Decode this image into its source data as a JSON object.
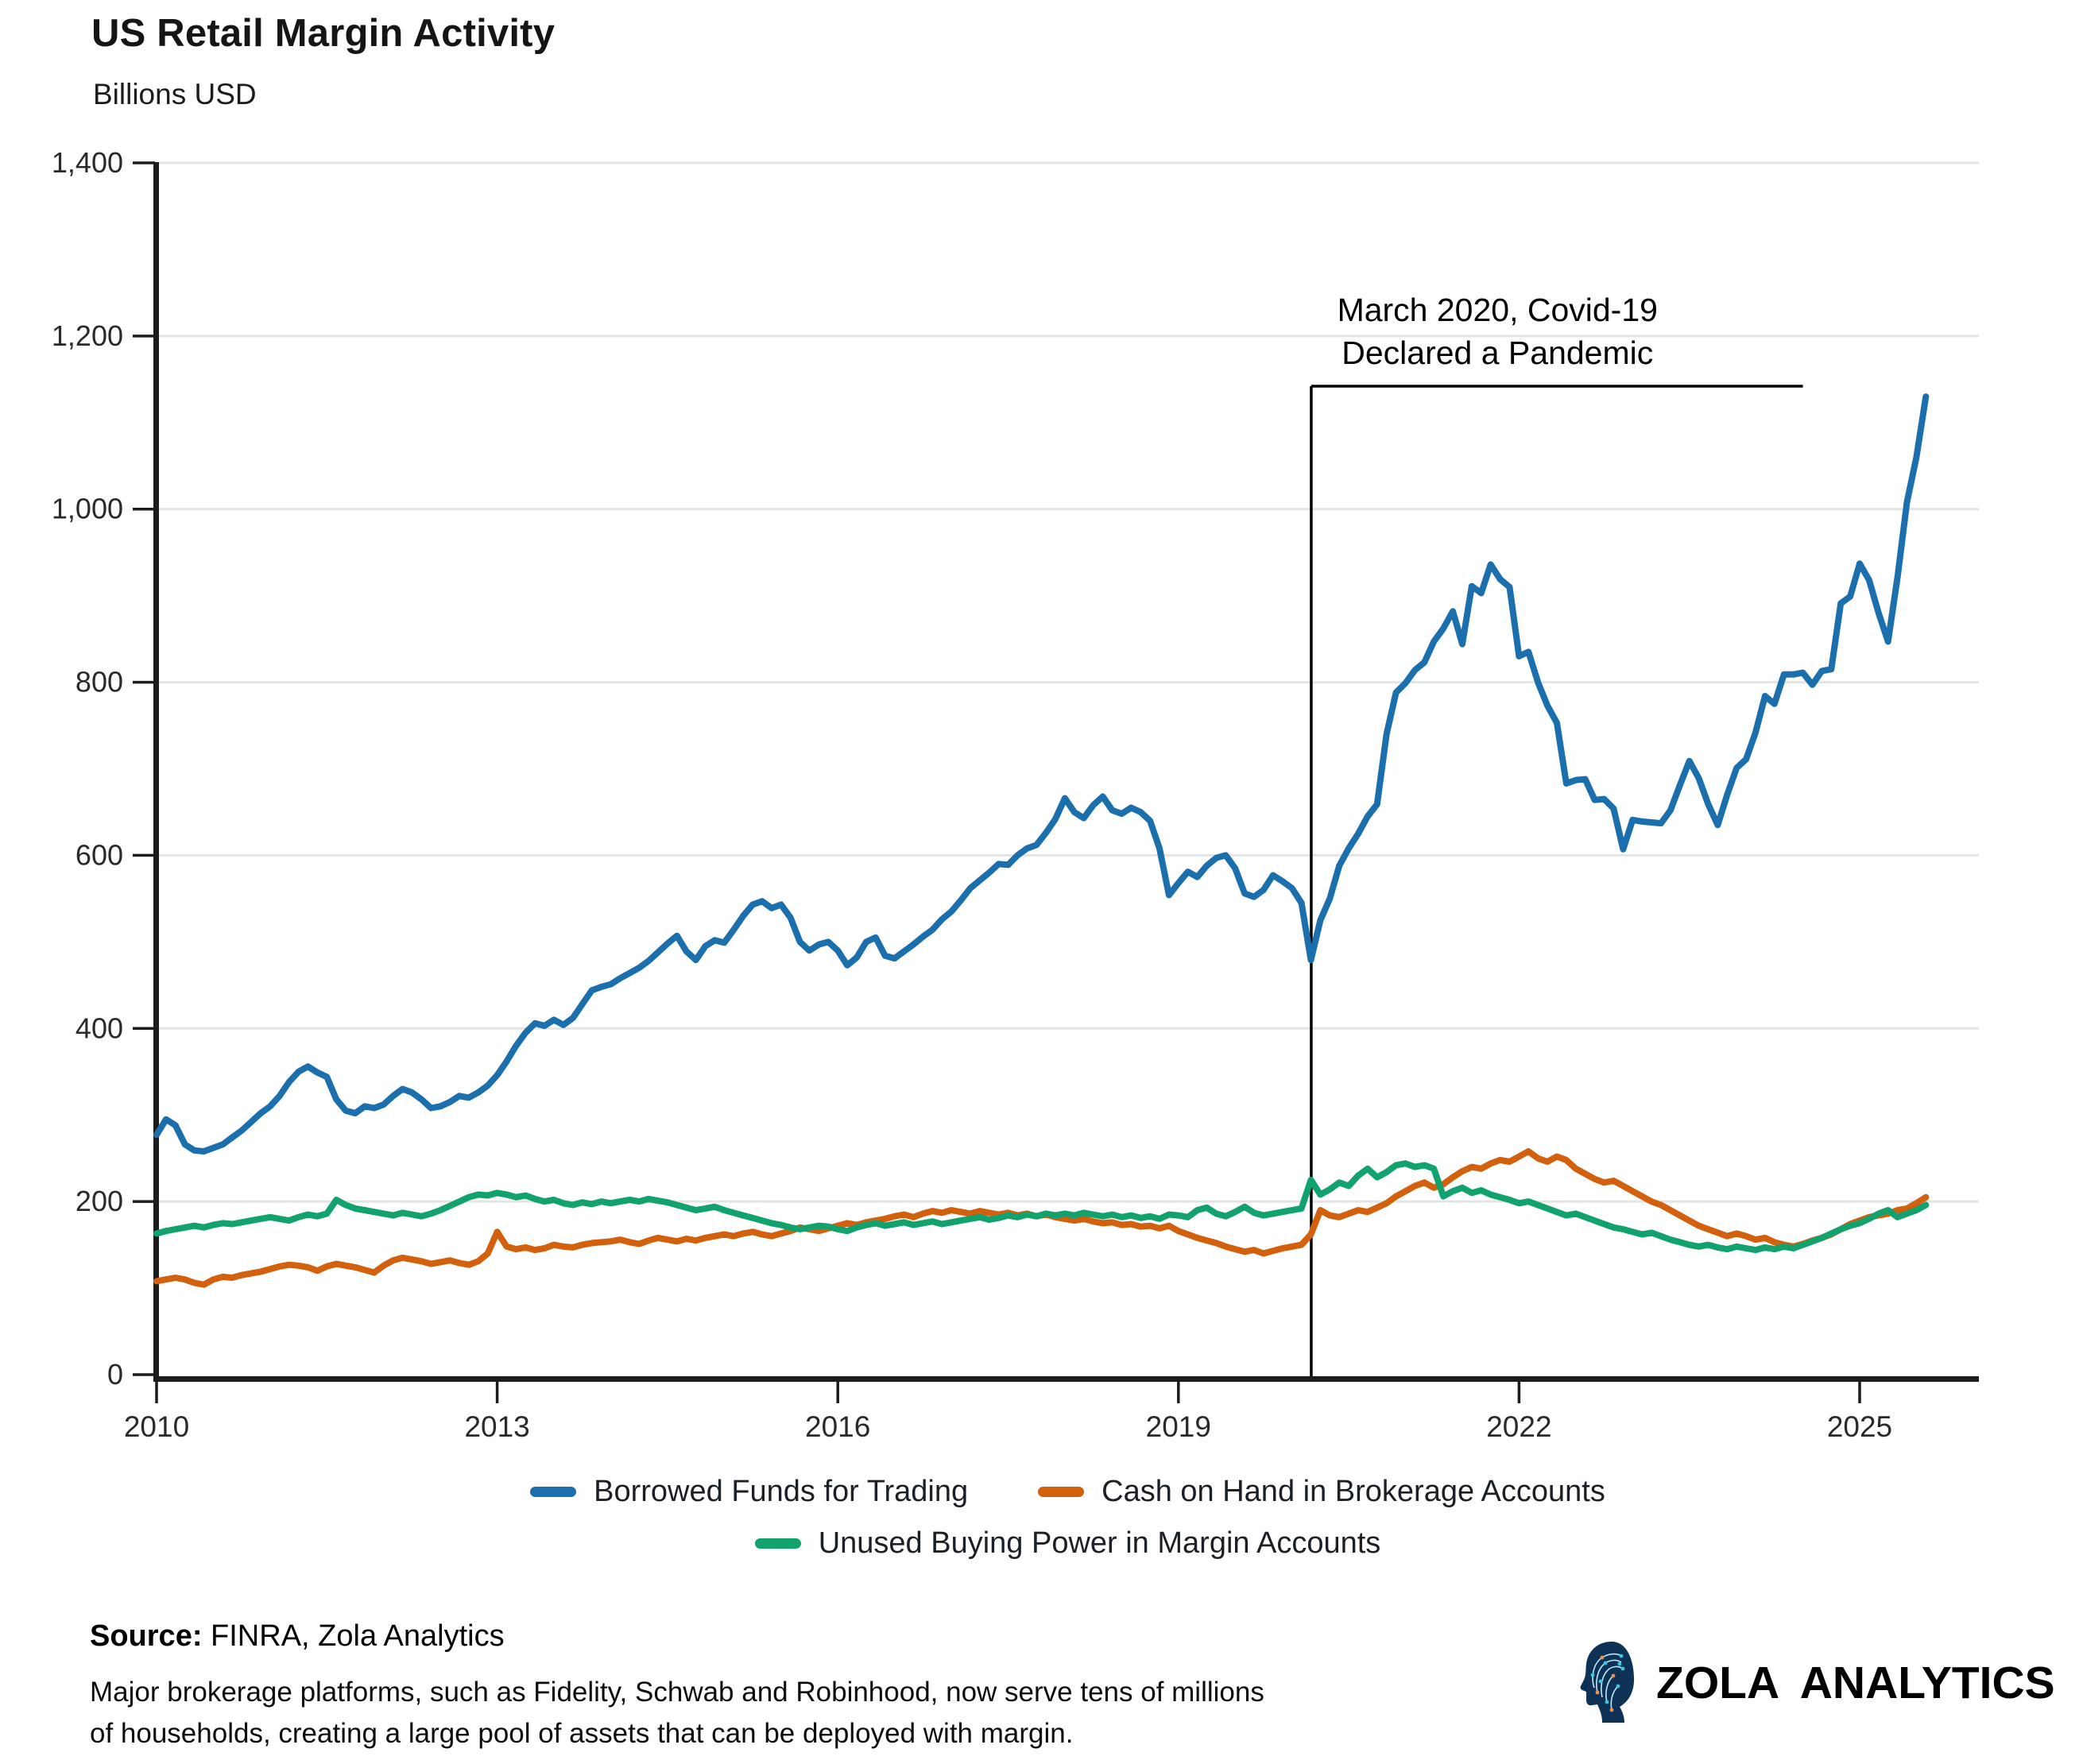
{
  "page": {
    "title": "US Retail Margin Activity",
    "subtitle": "Billions USD"
  },
  "chart_data": {
    "type": "line",
    "title": "US Retail Margin Activity",
    "ylabel": "Billions USD",
    "xlabel": "",
    "grid": "horizontal-only",
    "legend_position": "bottom",
    "x_start_year": 2010,
    "points_per_year": 12,
    "x_range": [
      2010.0,
      2026.05
    ],
    "y_range": [
      0,
      1400
    ],
    "x_ticks": [
      {
        "value": 2010,
        "label": "2010"
      },
      {
        "value": 2013,
        "label": "2013"
      },
      {
        "value": 2016,
        "label": "2016"
      },
      {
        "value": 2019,
        "label": "2019"
      },
      {
        "value": 2022,
        "label": "2022"
      },
      {
        "value": 2025,
        "label": "2025"
      }
    ],
    "y_ticks": [
      {
        "value": 0,
        "label": "0"
      },
      {
        "value": 200,
        "label": "200"
      },
      {
        "value": 400,
        "label": "400"
      },
      {
        "value": 600,
        "label": "600"
      },
      {
        "value": 800,
        "label": "800"
      },
      {
        "value": 1000,
        "label": "1,000"
      },
      {
        "value": 1200,
        "label": "1,200"
      },
      {
        "value": 1400,
        "label": "1,400"
      }
    ],
    "annotation": {
      "text_lines": [
        "March 2020, Covid-19",
        "Declared a Pandemic"
      ],
      "x_year": 2020.17,
      "bracket_end_year": 2024.5,
      "top_value": 1142,
      "color": "#000000"
    },
    "series": [
      {
        "name": "Borrowed Funds for Trading",
        "color": "#1b6fad",
        "values": [
          277,
          295,
          288,
          266,
          259,
          258,
          262,
          266,
          274,
          282,
          292,
          302,
          310,
          322,
          338,
          350,
          356,
          349,
          344,
          318,
          305,
          302,
          310,
          308,
          312,
          322,
          330,
          326,
          318,
          308,
          310,
          315,
          322,
          320,
          326,
          334,
          346,
          362,
          380,
          395,
          406,
          403,
          410,
          404,
          412,
          428,
          444,
          448,
          451,
          458,
          464,
          470,
          478,
          488,
          498,
          507,
          489,
          479,
          495,
          502,
          499,
          514,
          530,
          543,
          547,
          539,
          543,
          528,
          500,
          490,
          497,
          500,
          490,
          473,
          482,
          500,
          505,
          484,
          481,
          489,
          497,
          506,
          514,
          526,
          535,
          548,
          562,
          571,
          580,
          590,
          589,
          600,
          608,
          612,
          626,
          642,
          666,
          650,
          643,
          658,
          668,
          652,
          648,
          655,
          650,
          640,
          608,
          554,
          568,
          581,
          575,
          588,
          597,
          600,
          585,
          556,
          552,
          560,
          577,
          570,
          562,
          545,
          479,
          525,
          550,
          588,
          608,
          625,
          645,
          659,
          740,
          788,
          799,
          814,
          823,
          847,
          862,
          882,
          844,
          911,
          903,
          936,
          919,
          910,
          830,
          835,
          800,
          773,
          753,
          683,
          687,
          688,
          664,
          665,
          654,
          607,
          641,
          639,
          638,
          637,
          652,
          681,
          709,
          689,
          659,
          635,
          670,
          701,
          711,
          742,
          784,
          775,
          809,
          809,
          811,
          797,
          813,
          815,
          891,
          899,
          937,
          918,
          880,
          847,
          921,
          1008,
          1060,
          1130
        ]
      },
      {
        "name": "Cash on Hand in Brokerage Accounts",
        "color": "#d2600c",
        "values": [
          108,
          110,
          112,
          110,
          106,
          104,
          110,
          113,
          112,
          115,
          117,
          119,
          122,
          125,
          127,
          126,
          124,
          120,
          125,
          128,
          126,
          124,
          121,
          118,
          126,
          132,
          135,
          133,
          131,
          128,
          130,
          132,
          129,
          127,
          131,
          140,
          165,
          148,
          145,
          147,
          144,
          146,
          150,
          148,
          147,
          150,
          152,
          153,
          154,
          156,
          153,
          151,
          155,
          158,
          156,
          154,
          157,
          155,
          158,
          160,
          162,
          160,
          163,
          165,
          162,
          160,
          163,
          166,
          170,
          168,
          166,
          169,
          172,
          175,
          173,
          176,
          178,
          180,
          183,
          185,
          182,
          186,
          189,
          187,
          190,
          188,
          186,
          189,
          187,
          185,
          187,
          184,
          186,
          183,
          185,
          182,
          180,
          178,
          180,
          177,
          175,
          176,
          173,
          174,
          171,
          172,
          169,
          172,
          166,
          162,
          158,
          155,
          152,
          148,
          145,
          142,
          144,
          140,
          143,
          146,
          148,
          150,
          162,
          190,
          184,
          182,
          186,
          190,
          188,
          193,
          198,
          206,
          212,
          218,
          222,
          216,
          220,
          228,
          235,
          240,
          238,
          244,
          248,
          246,
          252,
          258,
          250,
          246,
          252,
          248,
          238,
          232,
          226,
          222,
          224,
          218,
          212,
          206,
          200,
          196,
          190,
          184,
          178,
          172,
          168,
          164,
          160,
          163,
          160,
          156,
          158,
          153,
          150,
          148,
          151,
          155,
          158,
          162,
          168,
          174,
          178,
          182,
          184,
          186,
          190,
          192,
          198,
          205
        ]
      },
      {
        "name": "Unused Buying Power in Margin Accounts",
        "color": "#12a26d",
        "values": [
          163,
          166,
          168,
          170,
          172,
          170,
          173,
          175,
          174,
          176,
          178,
          180,
          182,
          180,
          178,
          182,
          185,
          183,
          186,
          202,
          196,
          192,
          190,
          188,
          186,
          184,
          187,
          185,
          183,
          186,
          190,
          195,
          200,
          205,
          208,
          207,
          210,
          208,
          205,
          207,
          203,
          200,
          202,
          198,
          196,
          199,
          197,
          200,
          198,
          200,
          202,
          200,
          203,
          201,
          199,
          196,
          193,
          190,
          192,
          194,
          190,
          187,
          184,
          181,
          178,
          175,
          173,
          170,
          168,
          170,
          172,
          171,
          168,
          166,
          170,
          173,
          175,
          172,
          174,
          176,
          173,
          175,
          177,
          174,
          176,
          178,
          180,
          182,
          179,
          181,
          184,
          182,
          185,
          183,
          186,
          184,
          186,
          184,
          187,
          185,
          183,
          185,
          182,
          184,
          181,
          183,
          180,
          185,
          184,
          182,
          190,
          193,
          186,
          183,
          188,
          194,
          187,
          184,
          186,
          188,
          190,
          192,
          225,
          208,
          214,
          222,
          218,
          230,
          238,
          228,
          234,
          242,
          244,
          240,
          242,
          238,
          206,
          212,
          216,
          210,
          213,
          208,
          205,
          202,
          198,
          200,
          196,
          192,
          188,
          184,
          186,
          182,
          178,
          174,
          170,
          168,
          165,
          162,
          164,
          160,
          156,
          153,
          150,
          148,
          150,
          147,
          145,
          148,
          146,
          144,
          147,
          145,
          148,
          146,
          150,
          154,
          158,
          163,
          168,
          172,
          175,
          180,
          186,
          190,
          182,
          186,
          190,
          196
        ]
      }
    ],
    "legend_rows": [
      [
        0,
        1
      ],
      [
        2
      ]
    ],
    "style": {
      "grid_color": "#e4e4e4",
      "axis_color": "#1c1c1c",
      "tick_label_color": "#2a2a2a",
      "line_width": 8
    }
  },
  "footer": {
    "source_label": "Source:",
    "source_text": " FINRA, Zola Analytics",
    "note_line1": "Major brokerage platforms, such as Fidelity, Schwab and Robinhood, now serve tens of millions",
    "note_line2": "of households, creating a large pool of assets that can be deployed with margin."
  },
  "branding": {
    "name": "ZOLA ANALYTICS",
    "head_fill": "#0e3156",
    "circuit_color": "#bfe9f5",
    "node_teal": "#3ec6e0",
    "node_orange": "#e8924a"
  }
}
